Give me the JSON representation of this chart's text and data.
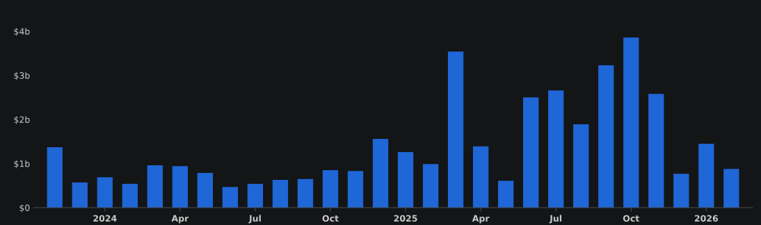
{
  "chart_data": {
    "type": "bar",
    "categories": [
      null,
      null,
      "2024",
      null,
      null,
      "Apr",
      null,
      null,
      "Jul",
      null,
      null,
      "Oct",
      null,
      null,
      "2025",
      null,
      null,
      "Apr",
      null,
      null,
      "Jul",
      null,
      null,
      "Oct",
      null,
      null,
      "2026",
      null
    ],
    "values": [
      1.37,
      0.57,
      0.69,
      0.54,
      0.96,
      0.94,
      0.79,
      0.47,
      0.54,
      0.63,
      0.65,
      0.85,
      0.83,
      1.56,
      1.26,
      0.99,
      3.54,
      1.39,
      0.61,
      2.5,
      2.66,
      1.89,
      3.23,
      3.86,
      2.58,
      0.77,
      1.45,
      0.88
    ],
    "color": "#1f66d6",
    "ylim": [
      0,
      4
    ],
    "yticks": [
      {
        "value": 0,
        "label": "$0"
      },
      {
        "value": 1,
        "label": "$1b"
      },
      {
        "value": 2,
        "label": "$2b"
      },
      {
        "value": 3,
        "label": "$3b"
      },
      {
        "value": 4,
        "label": "$4b"
      }
    ],
    "grid": false
  }
}
